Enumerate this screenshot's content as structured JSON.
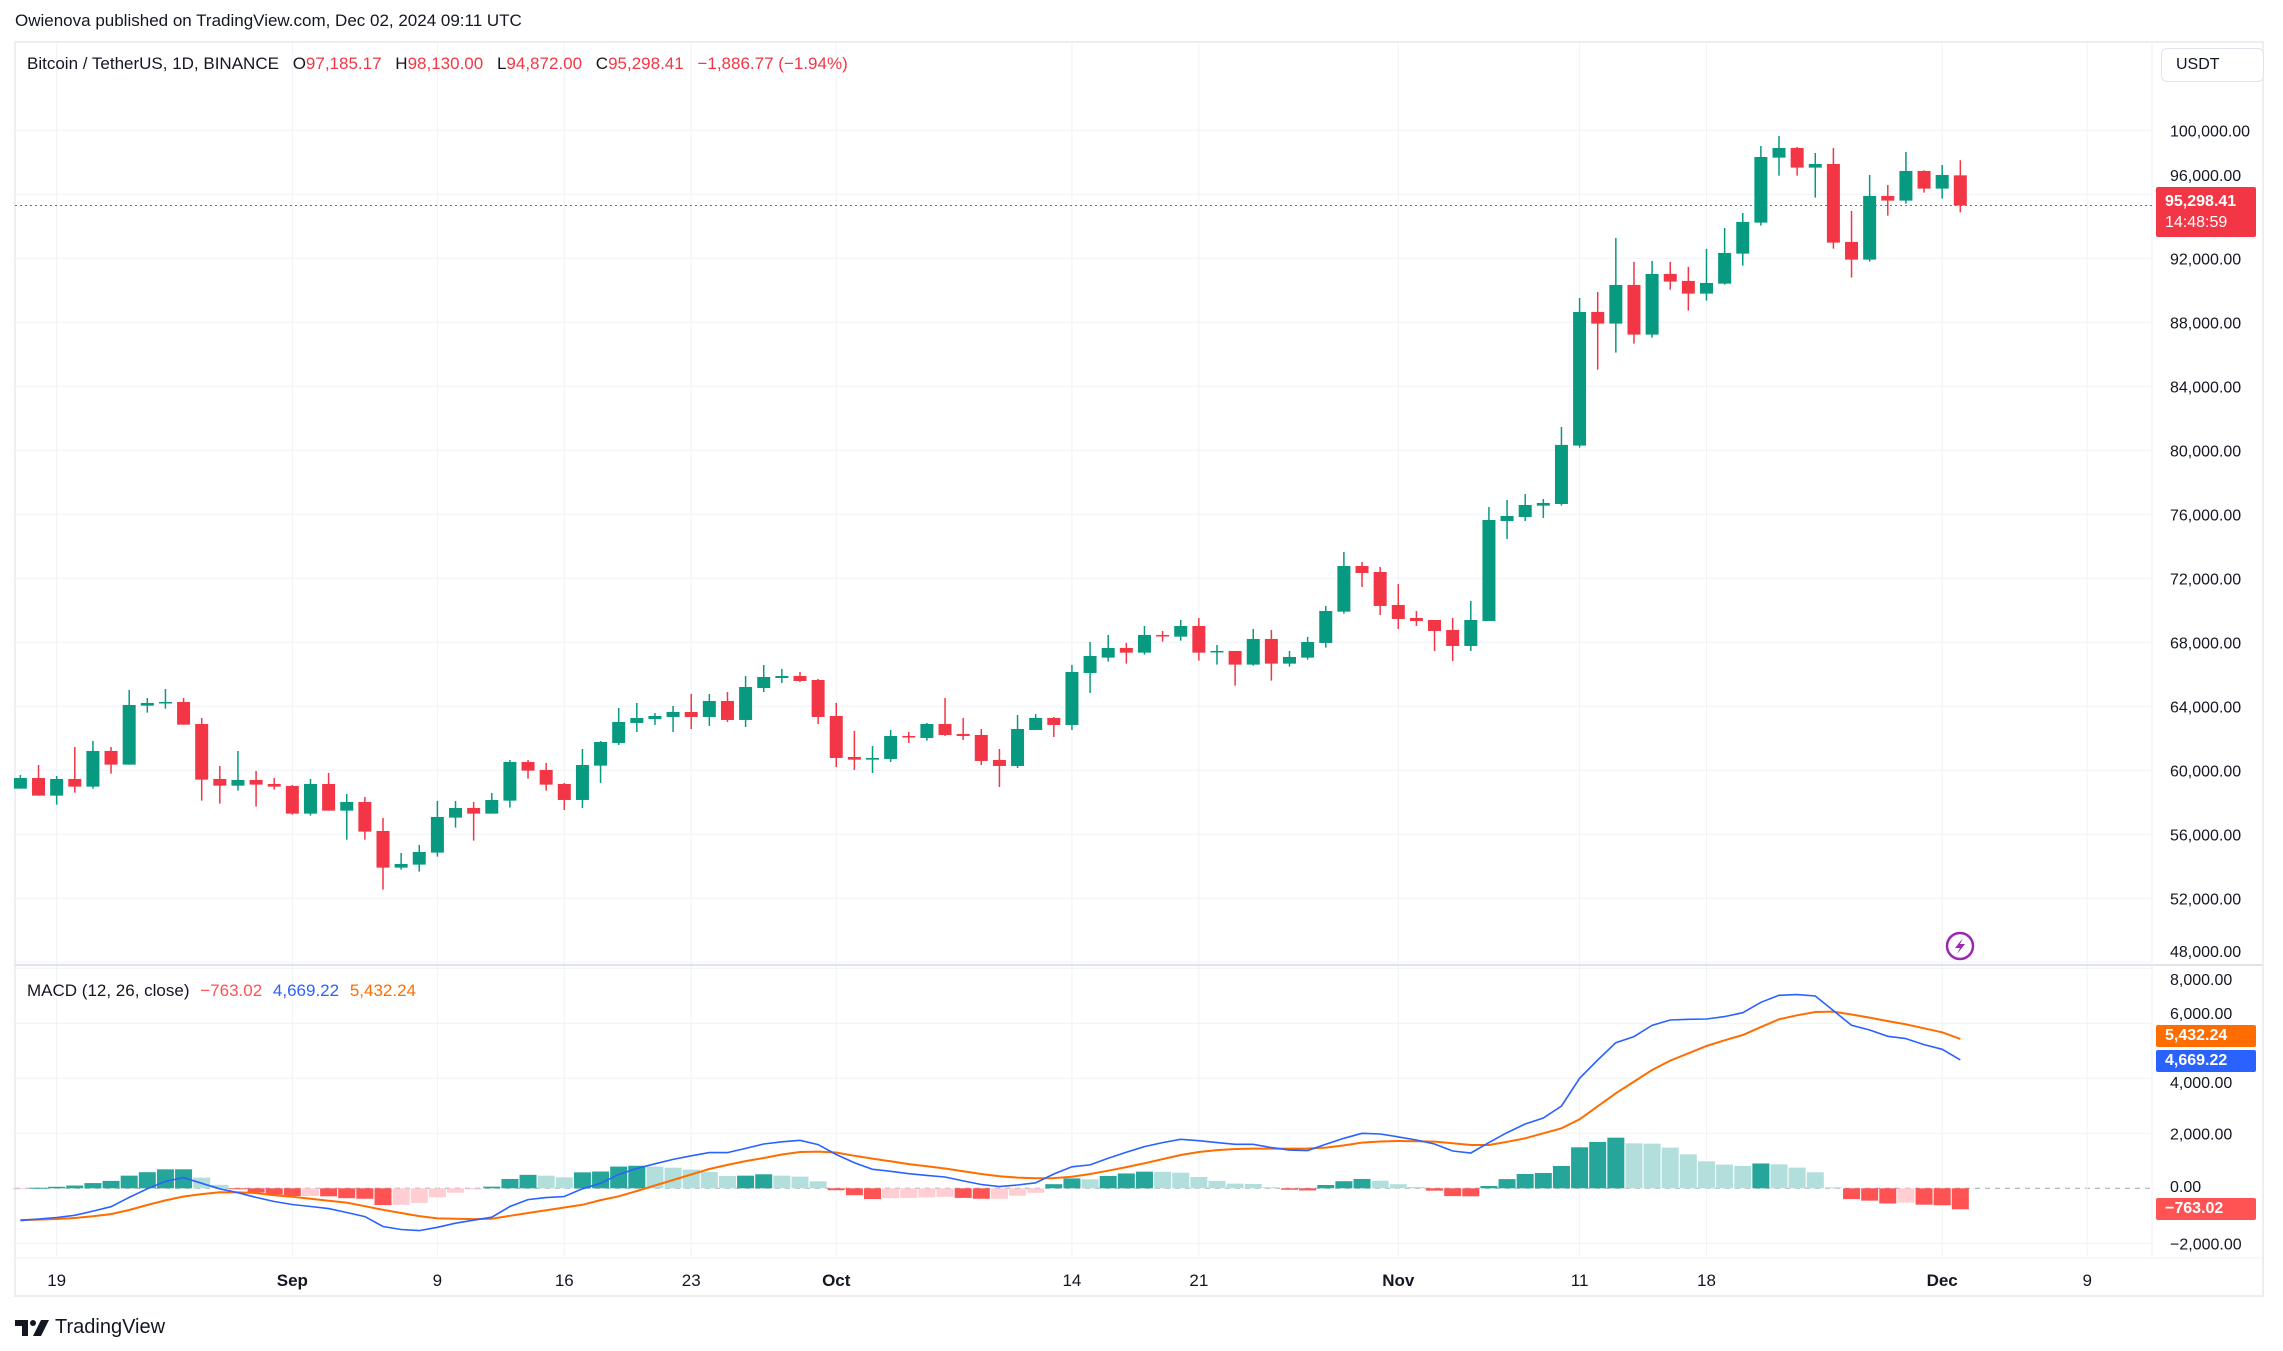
{
  "header": {
    "published": "Owienova published on TradingView.com, Dec 02, 2024 09:11 UTC"
  },
  "legend": {
    "symbol": "Bitcoin / TetherUS, 1D, BINANCE",
    "open_label": "O",
    "open": "97,185.17",
    "high_label": "H",
    "high": "98,130.00",
    "low_label": "L",
    "low": "94,872.00",
    "close_label": "C",
    "close": "95,298.41",
    "change": "−1,886.77 (−1.94%)"
  },
  "currency_button": "USDT",
  "price_tag": {
    "price": "95,298.41",
    "countdown": "14:48:59"
  },
  "macd_legend": {
    "title": "MACD (12, 26, close)",
    "histogram": "−763.02",
    "macd": "4,669.22",
    "signal": "5,432.24"
  },
  "macd_tags": {
    "signal": "5,432.24",
    "macd": "4,669.22",
    "histogram": "−763.02"
  },
  "footer": {
    "brand": "TradingView"
  },
  "icons": {
    "alert": "lightning-icon",
    "logo": "tradingview-logo-icon"
  },
  "colors": {
    "up": "#089981",
    "down": "#f23645",
    "macd": "#2962ff",
    "signal": "#ff6d00",
    "hist_up_strong": "#26a69a",
    "hist_up_weak": "#b2dfdb",
    "hist_down_strong": "#ff5252",
    "hist_down_weak": "#ffcdd2",
    "alert": "#9c27b0"
  },
  "chart_data": [
    {
      "type": "candlestick",
      "title": "Bitcoin / TetherUS, 1D, BINANCE",
      "ylim": [
        48000,
        100000
      ],
      "y_ticks": [
        "100,000.00",
        "96,000.00",
        "92,000.00",
        "88,000.00",
        "84,000.00",
        "80,000.00",
        "76,000.00",
        "72,000.00",
        "68,000.00",
        "64,000.00",
        "60,000.00",
        "56,000.00",
        "52,000.00",
        "48,000.00"
      ],
      "x_ticks": [
        {
          "label": "19",
          "date": "2024-08-19"
        },
        {
          "label": "Sep",
          "date": "2024-09-01"
        },
        {
          "label": "9",
          "date": "2024-09-09"
        },
        {
          "label": "16",
          "date": "2024-09-16"
        },
        {
          "label": "23",
          "date": "2024-09-23"
        },
        {
          "label": "Oct",
          "date": "2024-10-01"
        },
        {
          "label": "14",
          "date": "2024-10-14"
        },
        {
          "label": "21",
          "date": "2024-10-21"
        },
        {
          "label": "Nov",
          "date": "2024-11-01"
        },
        {
          "label": "11",
          "date": "2024-11-11"
        },
        {
          "label": "18",
          "date": "2024-11-18"
        },
        {
          "label": "Dec",
          "date": "2024-12-01"
        },
        {
          "label": "9",
          "date": "2024-12-09"
        }
      ],
      "grid": true,
      "last_price": 95298.41,
      "candles_fields": [
        "date",
        "open",
        "high",
        "low",
        "close"
      ],
      "candles": [
        [
          "2024-08-17",
          58854,
          59708,
          58854,
          59521
        ],
        [
          "2024-08-18",
          59521,
          60333,
          58417,
          58417
        ],
        [
          "2024-08-19",
          58417,
          59646,
          57854,
          59458
        ],
        [
          "2024-08-20",
          59458,
          61458,
          58604,
          58979
        ],
        [
          "2024-08-21",
          58979,
          61833,
          58854,
          61208
        ],
        [
          "2024-08-22",
          61208,
          61458,
          59791,
          60354
        ],
        [
          "2024-08-23",
          60354,
          65020,
          60354,
          64082
        ],
        [
          "2024-08-24",
          64041,
          64520,
          63603,
          64207
        ],
        [
          "2024-08-25",
          64187,
          65082,
          63853,
          64270
        ],
        [
          "2024-08-26",
          64270,
          64520,
          62853,
          62853
        ],
        [
          "2024-08-27",
          62895,
          63270,
          58104,
          59416
        ],
        [
          "2024-08-28",
          59458,
          60270,
          57916,
          59041
        ],
        [
          "2024-08-29",
          59041,
          61208,
          58729,
          59396
        ],
        [
          "2024-08-30",
          59396,
          59958,
          57729,
          59104
        ],
        [
          "2024-08-31",
          59146,
          59521,
          58792,
          58979
        ],
        [
          "2024-09-01",
          59021,
          59083,
          57229,
          57292
        ],
        [
          "2024-09-02",
          57292,
          59458,
          57167,
          59146
        ],
        [
          "2024-09-03",
          59146,
          59833,
          57479,
          57479
        ],
        [
          "2024-09-04",
          57479,
          58521,
          55667,
          58021
        ],
        [
          "2024-09-05",
          58021,
          58333,
          55667,
          56167
        ],
        [
          "2024-09-06",
          56208,
          57021,
          52542,
          53917
        ],
        [
          "2024-09-07",
          53917,
          54834,
          53792,
          54146
        ],
        [
          "2024-09-08",
          54105,
          55334,
          53667,
          54896
        ],
        [
          "2024-09-09",
          54855,
          58083,
          54605,
          57083
        ],
        [
          "2024-09-10",
          57042,
          58083,
          56417,
          57646
        ],
        [
          "2024-09-11",
          57646,
          58021,
          55604,
          57292
        ],
        [
          "2024-09-12",
          57292,
          58584,
          57292,
          58146
        ],
        [
          "2024-09-13",
          58104,
          60645,
          57667,
          60520
        ],
        [
          "2024-09-14",
          60520,
          60645,
          59479,
          59979
        ],
        [
          "2024-09-15",
          60021,
          60458,
          58729,
          59104
        ],
        [
          "2024-09-16",
          59146,
          59208,
          57521,
          58146
        ],
        [
          "2024-09-17",
          58146,
          61333,
          57646,
          60333
        ],
        [
          "2024-09-18",
          60291,
          61833,
          59208,
          61771
        ],
        [
          "2024-09-19",
          61708,
          63896,
          61583,
          63021
        ],
        [
          "2024-09-20",
          62958,
          64208,
          62396,
          63271
        ],
        [
          "2024-09-21",
          63208,
          63583,
          62833,
          63396
        ],
        [
          "2024-09-22",
          63333,
          64021,
          62396,
          63646
        ],
        [
          "2024-09-23",
          63646,
          64770,
          62583,
          63333
        ],
        [
          "2024-09-24",
          63333,
          64770,
          62771,
          64333
        ],
        [
          "2024-09-25",
          64333,
          64895,
          63021,
          63146
        ],
        [
          "2024-09-26",
          63146,
          65895,
          62708,
          65208
        ],
        [
          "2024-09-27",
          65145,
          66583,
          64895,
          65833
        ],
        [
          "2024-09-28",
          65770,
          66333,
          65458,
          65895
        ],
        [
          "2024-09-29",
          65895,
          66145,
          65520,
          65583
        ],
        [
          "2024-09-30",
          65645,
          65708,
          62895,
          63333
        ],
        [
          "2024-10-01",
          63395,
          64208,
          60208,
          60771
        ],
        [
          "2024-10-02",
          60833,
          62458,
          60021,
          60666
        ],
        [
          "2024-10-03",
          60666,
          61521,
          59833,
          60771
        ],
        [
          "2024-10-04",
          60708,
          62521,
          60520,
          62146
        ],
        [
          "2024-10-05",
          62146,
          62396,
          61708,
          62104
        ],
        [
          "2024-10-06",
          62021,
          62958,
          61854,
          62895
        ],
        [
          "2024-10-07",
          62895,
          64520,
          62146,
          62208
        ],
        [
          "2024-10-08",
          62271,
          63271,
          61896,
          62146
        ],
        [
          "2024-10-09",
          62208,
          62583,
          60333,
          60583
        ],
        [
          "2024-10-10",
          60646,
          61333,
          58958,
          60271
        ],
        [
          "2024-10-11",
          60271,
          63458,
          60146,
          62583
        ],
        [
          "2024-10-12",
          62521,
          63521,
          62521,
          63271
        ],
        [
          "2024-10-13",
          63271,
          63333,
          62083,
          62833
        ],
        [
          "2024-10-14",
          62833,
          66583,
          62521,
          66145
        ],
        [
          "2024-10-15",
          66083,
          68020,
          64833,
          67145
        ],
        [
          "2024-10-16",
          67042,
          68458,
          66792,
          67646
        ],
        [
          "2024-10-17",
          67646,
          67958,
          66667,
          67354
        ],
        [
          "2024-10-18",
          67354,
          69021,
          67229,
          68458
        ],
        [
          "2024-10-19",
          68458,
          68708,
          68041,
          68417
        ],
        [
          "2024-10-20",
          68354,
          69396,
          68104,
          69021
        ],
        [
          "2024-10-21",
          69021,
          69521,
          66855,
          67354
        ],
        [
          "2024-10-22",
          67417,
          67833,
          66605,
          67459
        ],
        [
          "2024-10-23",
          67459,
          67459,
          65292,
          66605
        ],
        [
          "2024-10-24",
          66605,
          68833,
          66542,
          68208
        ],
        [
          "2024-10-25",
          68208,
          68771,
          65605,
          66667
        ],
        [
          "2024-10-26",
          66667,
          67459,
          66480,
          67083
        ],
        [
          "2024-10-27",
          67042,
          68333,
          66917,
          68020
        ],
        [
          "2024-10-28",
          67958,
          70271,
          67667,
          69958
        ],
        [
          "2024-10-29",
          69916,
          73645,
          69791,
          72770
        ],
        [
          "2024-10-30",
          72770,
          73020,
          71458,
          72333
        ],
        [
          "2024-10-31",
          72395,
          72708,
          69708,
          70271
        ],
        [
          "2024-11-01",
          70333,
          71645,
          68833,
          69458
        ],
        [
          "2024-11-02",
          69521,
          69958,
          69021,
          69333
        ],
        [
          "2024-11-03",
          69396,
          69396,
          67459,
          68708
        ],
        [
          "2024-11-04",
          68771,
          69521,
          66833,
          67771
        ],
        [
          "2024-11-05",
          67771,
          70583,
          67459,
          69396
        ],
        [
          "2024-11-06",
          69333,
          76457,
          69333,
          75645
        ],
        [
          "2024-11-07",
          75582,
          76895,
          74457,
          75895
        ],
        [
          "2024-11-08",
          75832,
          77270,
          75582,
          76582
        ],
        [
          "2024-11-09",
          76540,
          76957,
          75770,
          76707
        ],
        [
          "2024-11-10",
          76645,
          81461,
          76544,
          80337
        ],
        [
          "2024-11-11",
          80295,
          89522,
          80170,
          88647
        ],
        [
          "2024-11-12",
          88647,
          89897,
          85044,
          87918
        ],
        [
          "2024-11-13",
          87918,
          93272,
          86106,
          90335
        ],
        [
          "2024-11-14",
          90335,
          91772,
          86668,
          87231
        ],
        [
          "2024-11-15",
          87231,
          91834,
          87044,
          91022
        ],
        [
          "2024-11-16",
          91022,
          91772,
          90043,
          90543
        ],
        [
          "2024-11-17",
          90585,
          91460,
          88731,
          89793
        ],
        [
          "2024-11-18",
          89793,
          92584,
          89356,
          90460
        ],
        [
          "2024-11-19",
          90418,
          93896,
          90355,
          92334
        ],
        [
          "2024-11-20",
          92293,
          94834,
          91543,
          94272
        ],
        [
          "2024-11-21",
          94230,
          99021,
          94042,
          98333
        ],
        [
          "2024-11-22",
          98292,
          99646,
          97167,
          98896
        ],
        [
          "2024-11-23",
          98896,
          98958,
          97167,
          97667
        ],
        [
          "2024-11-24",
          97667,
          98583,
          95792,
          97896
        ],
        [
          "2024-11-25",
          97896,
          98896,
          92605,
          92980
        ],
        [
          "2024-11-26",
          93022,
          94959,
          90793,
          91918
        ],
        [
          "2024-11-27",
          91918,
          97208,
          91793,
          95897
        ],
        [
          "2024-11-28",
          95897,
          96584,
          94667,
          95605
        ],
        [
          "2024-11-29",
          95605,
          98646,
          95417,
          97459
        ],
        [
          "2024-11-30",
          97459,
          97500,
          96105,
          96355
        ],
        [
          "2024-12-01",
          96355,
          97833,
          95730,
          97208
        ],
        [
          "2024-12-02",
          97185.17,
          98130,
          94872,
          95298.41
        ]
      ]
    },
    {
      "type": "line+bar",
      "title": "MACD (12, 26, close)",
      "ylim": [
        -2500,
        8000
      ],
      "y_ticks": [
        "8,000.00",
        "6,000.00",
        "4,000.00",
        "2,000.00",
        "0.00",
        "−2,000.00"
      ],
      "grid": true,
      "x": "same dates as candles",
      "macd": [
        -1176,
        -1120,
        -1060,
        -980,
        -830,
        -670,
        -330,
        -20,
        250,
        390,
        180,
        -20,
        -160,
        -330,
        -480,
        -590,
        -660,
        -740,
        -880,
        -1030,
        -1390,
        -1500,
        -1540,
        -1420,
        -1270,
        -1160,
        -1050,
        -660,
        -410,
        -340,
        -300,
        -20,
        180,
        500,
        720,
        890,
        1050,
        1180,
        1297,
        1297,
        1450,
        1610,
        1690,
        1745,
        1590,
        1230,
        930,
        690,
        620,
        530,
        470,
        410,
        270,
        140,
        60,
        120,
        200,
        520,
        780,
        850,
        1090,
        1310,
        1515,
        1660,
        1780,
        1730,
        1660,
        1600,
        1600,
        1480,
        1390,
        1370,
        1600,
        1818,
        2000,
        1976,
        1870,
        1757,
        1612,
        1357,
        1285,
        1660,
        2024,
        2339,
        2557,
        2994,
        4000,
        4666,
        5296,
        5515,
        5927,
        6121,
        6145,
        6157,
        6242,
        6387,
        6763,
        7018,
        7042,
        6993,
        6460,
        5927,
        5757,
        5527,
        5442,
        5224,
        5054,
        4669.22
      ],
      "signal": [
        -1151,
        -1140,
        -1115,
        -1080,
        -1020,
        -940,
        -790,
        -606,
        -440,
        -300,
        -210,
        -145,
        -150,
        -175,
        -250,
        -310,
        -380,
        -450,
        -520,
        -650,
        -780,
        -900,
        -1010,
        -1095,
        -1110,
        -1120,
        -1110,
        -1000,
        -900,
        -800,
        -700,
        -600,
        -430,
        -290,
        -100,
        100,
        300,
        500,
        700,
        850,
        990,
        1100,
        1230,
        1320,
        1335,
        1300,
        1180,
        1080,
        980,
        880,
        800,
        720,
        620,
        520,
        440,
        390,
        364,
        370,
        420,
        521,
        640,
        770,
        909,
        1060,
        1210,
        1320,
        1390,
        1430,
        1442,
        1442,
        1442,
        1448,
        1480,
        1560,
        1660,
        1700,
        1721,
        1710,
        1697,
        1640,
        1576,
        1576,
        1690,
        1818,
        2000,
        2182,
        2509,
        2980,
        3454,
        3880,
        4303,
        4642,
        4910,
        5175,
        5380,
        5575,
        5860,
        6145,
        6290,
        6411,
        6424,
        6320,
        6206,
        6080,
        5963,
        5820,
        5672,
        5432.24
      ],
      "histogram": [
        -25,
        20,
        55,
        100,
        190,
        270,
        460,
        586,
        690,
        690,
        390,
        125,
        -10,
        -155,
        -230,
        -280,
        -280,
        -290,
        -360,
        -380,
        -610,
        -600,
        -530,
        -325,
        -160,
        -40,
        60,
        340,
        490,
        460,
        400,
        580,
        610,
        790,
        820,
        790,
        750,
        680,
        597,
        447,
        460,
        510,
        460,
        425,
        255,
        -70,
        -250,
        -390,
        -360,
        -350,
        -330,
        -310,
        -350,
        -380,
        -380,
        -270,
        -164,
        150,
        360,
        329,
        450,
        540,
        606,
        600,
        570,
        410,
        270,
        170,
        158,
        38,
        -52,
        -78,
        120,
        258,
        340,
        276,
        149,
        47,
        -85,
        -283,
        -291,
        84,
        334,
        521,
        557,
        812,
        1491,
        1686,
        1842,
        1635,
        1624,
        1479,
        1235,
        982,
        862,
        812,
        903,
        873,
        752,
        582,
        36,
        -393,
        -449,
        -553,
        -521,
        -596,
        -618,
        -763.02
      ]
    }
  ]
}
